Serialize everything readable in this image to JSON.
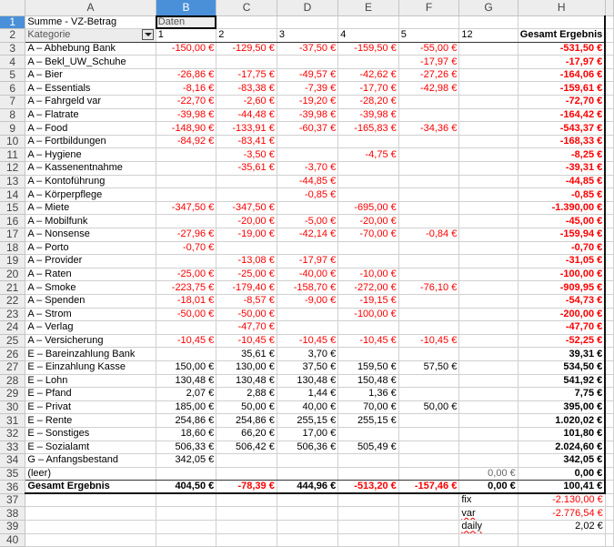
{
  "columns": [
    "A",
    "B",
    "C",
    "D",
    "E",
    "F",
    "G",
    "H"
  ],
  "selected_column": "B",
  "selected_row": 1,
  "pivot": {
    "data_field": "Summe - VZ-Betrag",
    "data_label": "Daten",
    "row_field": "Kategorie",
    "col_headers": [
      "1",
      "2",
      "3",
      "4",
      "5",
      "12",
      "Gesamt Ergebnis"
    ]
  },
  "rows": [
    [
      "A – Abhebung Bank",
      "-150,00 €",
      "-129,50 €",
      "-37,50 €",
      "-159,50 €",
      "-55,00 €",
      "",
      "-531,50 €"
    ],
    [
      "A – Bekl_UW_Schuhe",
      "",
      "",
      "",
      "",
      "-17,97 €",
      "",
      "-17,97 €"
    ],
    [
      "A – Bier",
      "-26,86 €",
      "-17,75 €",
      "-49,57 €",
      "-42,62 €",
      "-27,26 €",
      "",
      "-164,06 €"
    ],
    [
      "A – Essentials",
      "-8,16 €",
      "-83,38 €",
      "-7,39 €",
      "-17,70 €",
      "-42,98 €",
      "",
      "-159,61 €"
    ],
    [
      "A – Fahrgeld var",
      "-22,70 €",
      "-2,60 €",
      "-19,20 €",
      "-28,20 €",
      "",
      "",
      "-72,70 €"
    ],
    [
      "A – Flatrate",
      "-39,98 €",
      "-44,48 €",
      "-39,98 €",
      "-39,98 €",
      "",
      "",
      "-164,42 €"
    ],
    [
      "A – Food",
      "-148,90 €",
      "-133,91 €",
      "-60,37 €",
      "-165,83 €",
      "-34,36 €",
      "",
      "-543,37 €"
    ],
    [
      "A – Fortbildungen",
      "-84,92 €",
      "-83,41 €",
      "",
      "",
      "",
      "",
      "-168,33 €"
    ],
    [
      "A – Hygiene",
      "",
      "-3,50 €",
      "",
      "-4,75 €",
      "",
      "",
      "-8,25 €"
    ],
    [
      "A – Kassenentnahme",
      "",
      "-35,61 €",
      "-3,70 €",
      "",
      "",
      "",
      "-39,31 €"
    ],
    [
      "A – Kontoführung",
      "",
      "",
      "-44,85 €",
      "",
      "",
      "",
      "-44,85 €"
    ],
    [
      "A – Körperpflege",
      "",
      "",
      "-0,85 €",
      "",
      "",
      "",
      "-0,85 €"
    ],
    [
      "A – Miete",
      "-347,50 €",
      "-347,50 €",
      "",
      "-695,00 €",
      "",
      "",
      "-1.390,00 €"
    ],
    [
      "A – Mobilfunk",
      "",
      "-20,00 €",
      "-5,00 €",
      "-20,00 €",
      "",
      "",
      "-45,00 €"
    ],
    [
      "A – Nonsense",
      "-27,96 €",
      "-19,00 €",
      "-42,14 €",
      "-70,00 €",
      "-0,84 €",
      "",
      "-159,94 €"
    ],
    [
      "A – Porto",
      "-0,70 €",
      "",
      "",
      "",
      "",
      "",
      "-0,70 €"
    ],
    [
      "A – Provider",
      "",
      "-13,08 €",
      "-17,97 €",
      "",
      "",
      "",
      "-31,05 €"
    ],
    [
      "A – Raten",
      "-25,00 €",
      "-25,00 €",
      "-40,00 €",
      "-10,00 €",
      "",
      "",
      "-100,00 €"
    ],
    [
      "A – Smoke",
      "-223,75 €",
      "-179,40 €",
      "-158,70 €",
      "-272,00 €",
      "-76,10 €",
      "",
      "-909,95 €"
    ],
    [
      "A – Spenden",
      "-18,01 €",
      "-8,57 €",
      "-9,00 €",
      "-19,15 €",
      "",
      "",
      "-54,73 €"
    ],
    [
      "A – Strom",
      "-50,00 €",
      "-50,00 €",
      "",
      "-100,00 €",
      "",
      "",
      "-200,00 €"
    ],
    [
      "A – Verlag",
      "",
      "-47,70 €",
      "",
      "",
      "",
      "",
      "-47,70 €"
    ],
    [
      "A – Versicherung",
      "-10,45 €",
      "-10,45 €",
      "-10,45 €",
      "-10,45 €",
      "-10,45 €",
      "",
      "-52,25 €"
    ],
    [
      "E – Bareinzahlung Bank",
      "",
      "35,61 €",
      "3,70 €",
      "",
      "",
      "",
      "39,31 €"
    ],
    [
      "E – Einzahlung Kasse",
      "150,00 €",
      "130,00 €",
      "37,50 €",
      "159,50 €",
      "57,50 €",
      "",
      "534,50 €"
    ],
    [
      "E – Lohn",
      "130,48 €",
      "130,48 €",
      "130,48 €",
      "150,48 €",
      "",
      "",
      "541,92 €"
    ],
    [
      "E – Pfand",
      "2,07 €",
      "2,88 €",
      "1,44 €",
      "1,36 €",
      "",
      "",
      "7,75 €"
    ],
    [
      "E – Privat",
      "185,00 €",
      "50,00 €",
      "40,00 €",
      "70,00 €",
      "50,00 €",
      "",
      "395,00 €"
    ],
    [
      "E – Rente",
      "254,86 €",
      "254,86 €",
      "255,15 €",
      "255,15 €",
      "",
      "",
      "1.020,02 €"
    ],
    [
      "E – Sonstiges",
      "18,60 €",
      "66,20 €",
      "17,00 €",
      "",
      "",
      "",
      "101,80 €"
    ],
    [
      "E – Sozialamt",
      "506,33 €",
      "506,42 €",
      "506,36 €",
      "505,49 €",
      "",
      "",
      "2.024,60 €"
    ],
    [
      "G – Anfangsbestand",
      "342,05 €",
      "",
      "",
      "",
      "",
      "",
      "342,05 €"
    ],
    [
      "(leer)",
      "",
      "",
      "",
      "",
      "",
      "0,00 €",
      "0,00 €"
    ]
  ],
  "total": [
    "Gesamt Ergebnis",
    "404,50 €",
    "-78,39 €",
    "444,96 €",
    "-513,20 €",
    "-157,46 €",
    "0,00 €",
    "100,41 €"
  ],
  "extras": [
    {
      "label": "fix",
      "value": "-2.130,00 €"
    },
    {
      "label": "var",
      "value": "-2.776,54 €"
    },
    {
      "label": "daily",
      "value": "2,02 €"
    }
  ],
  "colors": {
    "negative": "#ff0000",
    "selection": "#4a90d9"
  }
}
